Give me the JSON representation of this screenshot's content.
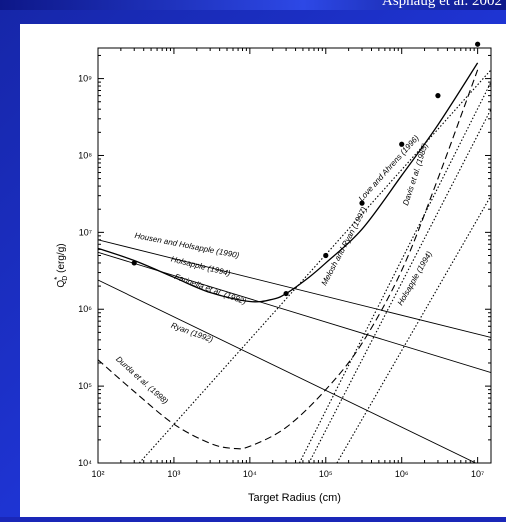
{
  "slide": {
    "citation": "Asphaug et al. 2002",
    "background_color": "#1f35d6"
  },
  "chart_data": {
    "type": "line",
    "title": "",
    "xlabel": "Target Radius (cm)",
    "ylabel": "Q*D (erg/g)",
    "xscale": "log",
    "yscale": "log",
    "xlim": [
      100,
      15000000
    ],
    "ylim": [
      10000,
      2500000000
    ],
    "grid": false,
    "x_ticks": [
      {
        "value": 100,
        "label": "10²"
      },
      {
        "value": 1000,
        "label": "10³"
      },
      {
        "value": 10000,
        "label": "10⁴"
      },
      {
        "value": 100000,
        "label": "10⁵"
      },
      {
        "value": 1000000,
        "label": "10⁶"
      },
      {
        "value": 10000000,
        "label": "10⁷"
      }
    ],
    "y_ticks": [
      {
        "value": 10000,
        "label": "10⁴"
      },
      {
        "value": 100000,
        "label": "10⁵"
      },
      {
        "value": 1000000,
        "label": "10⁶"
      },
      {
        "value": 10000000,
        "label": "10⁷"
      },
      {
        "value": 100000000,
        "label": "10⁸"
      },
      {
        "value": 1000000000,
        "label": "10⁹"
      }
    ],
    "series": [
      {
        "name": "Housen and Holsapple (1990)",
        "style": "solid",
        "color": "#000000",
        "x": [
          100,
          15000000
        ],
        "y": [
          8000000,
          430000
        ]
      },
      {
        "name": "Holsapple (1994)",
        "style": "solid",
        "color": "#000000",
        "x": [
          100,
          300,
          1000,
          3000,
          10000,
          20000,
          30000,
          60000,
          100000,
          300000,
          1000000,
          3000000,
          10000000
        ],
        "y": [
          6200000,
          4300000,
          2600000,
          1650000,
          1260000,
          1350000,
          1600000,
          2600000,
          4000000,
          11000000,
          55000000,
          250000000,
          1600000000
        ]
      },
      {
        "name": "Farinella et al. (1982)",
        "style": "solid",
        "color": "#000000",
        "x": [
          100,
          15000000
        ],
        "y": [
          5500000,
          150000
        ]
      },
      {
        "name": "Ryan (1992)",
        "style": "solid",
        "color": "#000000",
        "x": [
          100,
          15000000
        ],
        "y": [
          2400000,
          8000
        ]
      },
      {
        "name": "Durda et al. (1998)",
        "style": "dashed",
        "color": "#000000",
        "x": [
          100,
          300,
          1000,
          3000,
          6000,
          10000,
          30000,
          100000,
          300000,
          1000000,
          3000000,
          10000000
        ],
        "y": [
          220000,
          85000,
          32000,
          18000,
          15500,
          16500,
          29000,
          90000,
          360000,
          3200000,
          50000000,
          1300000000
        ]
      },
      {
        "name": "Love and Ahrens (1996)",
        "style": "dotted",
        "color": "#000000",
        "x": [
          350,
          15000000
        ],
        "y": [
          10000,
          1300000000
        ]
      },
      {
        "name": "Melosh and Ryan (1997)",
        "style": "dotted",
        "color": "#000000",
        "x": [
          45000,
          15000000
        ],
        "y": [
          10000,
          900000000
        ]
      },
      {
        "name": "Davis et al. (1985)",
        "style": "dotted",
        "color": "#000000",
        "x": [
          60000,
          15000000
        ],
        "y": [
          10000,
          400000000
        ]
      },
      {
        "name": "Holsapple (1994)",
        "style": "dotted",
        "color": "#000000",
        "x": [
          140000,
          15000000
        ],
        "y": [
          10000,
          30000000
        ]
      }
    ],
    "data_points": {
      "x": [
        300,
        30000,
        100000,
        300000,
        1000000,
        3000000,
        10000000
      ],
      "y": [
        4000000,
        1600000,
        5000000,
        24000000,
        140000000,
        600000000,
        2800000000
      ]
    },
    "annotations": [
      {
        "text": "Housen and Holsapple (1990)",
        "x": 300,
        "y": 8500000,
        "angle": 11
      },
      {
        "text": "Holsapple (1994)",
        "x": 900,
        "y": 4200000,
        "angle": 14
      },
      {
        "text": "Farinella et al. (1982)",
        "x": 1000,
        "y": 2500000,
        "angle": 20
      },
      {
        "text": "Ryan (1992)",
        "x": 900,
        "y": 580000,
        "angle": 20
      },
      {
        "text": "Durda et al. (1998)",
        "x": 170,
        "y": 220000,
        "angle": 42
      },
      {
        "text": "Love and Ahrens (1996)",
        "x": 300000,
        "y": 25000000,
        "angle": -48
      },
      {
        "text": "Melosh and Ryan (1997)",
        "x": 100000,
        "y": 2000000,
        "angle": -62
      },
      {
        "text": "Davis et al. (1985)",
        "x": 1200000,
        "y": 22000000,
        "angle": -72
      },
      {
        "text": "Holsapple (1994)",
        "x": 1000000,
        "y": 1100000,
        "angle": -60
      }
    ]
  }
}
